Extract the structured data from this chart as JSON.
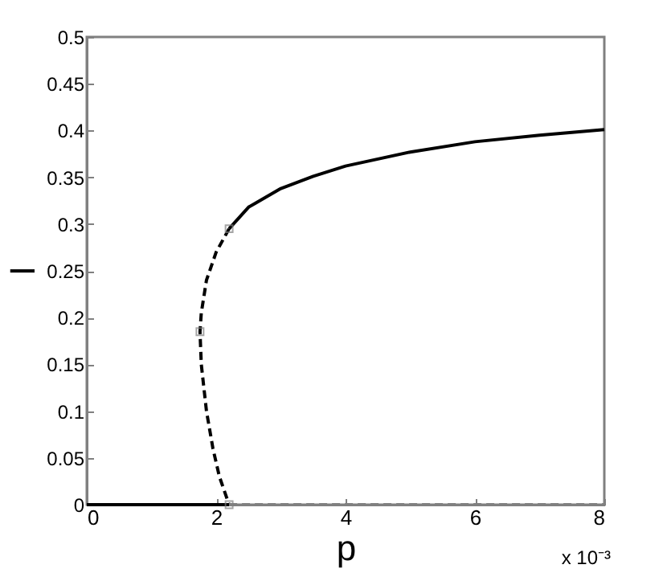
{
  "chart_data": {
    "type": "line",
    "xlabel": "p",
    "ylabel": "I",
    "xlim": [
      0,
      8
    ],
    "ylim": [
      0,
      0.5
    ],
    "xticks": [
      0,
      2,
      4,
      6,
      8
    ],
    "yticks": [
      0,
      0.05,
      0.1,
      0.15,
      0.2,
      0.25,
      0.3,
      0.35,
      0.4,
      0.45,
      0.5
    ],
    "grid": false,
    "annotations": [
      "x 10⁻³"
    ],
    "series": [
      {
        "color": "#000000",
        "line_style": "solid",
        "x": [
          2.2,
          2.5,
          3,
          3.5,
          4,
          5,
          6,
          7,
          8
        ],
        "values": [
          0.295,
          0.318,
          0.338,
          0.351,
          0.362,
          0.377,
          0.388,
          0.395,
          0.401
        ]
      },
      {
        "color": "#000000",
        "line_style": "dashed",
        "x": [
          2.2,
          2.0,
          1.85,
          1.77,
          1.75,
          1.77,
          1.85,
          1.95,
          2.05,
          2.2
        ],
        "values": [
          0.295,
          0.27,
          0.24,
          0.205,
          0.185,
          0.15,
          0.1,
          0.06,
          0.03,
          0
        ]
      },
      {
        "color": "#000000",
        "line_style": "solid",
        "x": [
          0,
          2.2
        ],
        "values": [
          0,
          0
        ]
      },
      {
        "color": "#808080",
        "line_style": "dashed",
        "x": [
          2.2,
          8
        ],
        "values": [
          0,
          0
        ]
      },
      {
        "type": "scatter",
        "marker": "square",
        "color": "#808080",
        "x": [
          2.2,
          1.75,
          2.2
        ],
        "values": [
          0.295,
          0.185,
          0
        ]
      }
    ]
  }
}
